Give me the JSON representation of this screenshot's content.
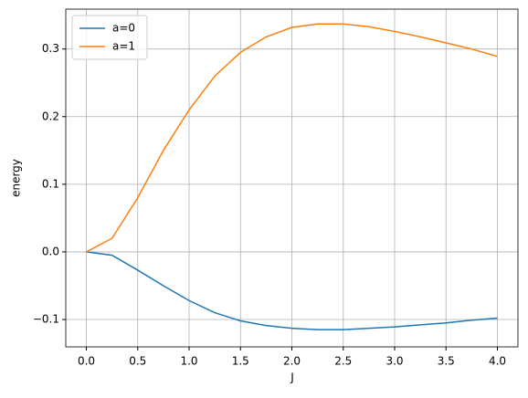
{
  "chart_data": {
    "type": "line",
    "x_label": "J",
    "y_label": "energy",
    "x": [
      0.0,
      0.25,
      0.5,
      0.75,
      1.0,
      1.25,
      1.5,
      1.75,
      2.0,
      2.25,
      2.5,
      2.75,
      3.0,
      3.25,
      3.5,
      3.75,
      4.0
    ],
    "series": [
      {
        "name": "a=0",
        "color": "#1f77b4",
        "values": [
          0.0,
          -0.005,
          -0.027,
          -0.05,
          -0.072,
          -0.09,
          -0.102,
          -0.109,
          -0.113,
          -0.115,
          -0.115,
          -0.113,
          -0.111,
          -0.108,
          -0.105,
          -0.101,
          -0.098
        ]
      },
      {
        "name": "a=1",
        "color": "#ff7f0e",
        "values": [
          0.0,
          0.02,
          0.08,
          0.15,
          0.21,
          0.26,
          0.295,
          0.318,
          0.332,
          0.337,
          0.337,
          0.333,
          0.326,
          0.318,
          0.309,
          0.3,
          0.289
        ]
      }
    ],
    "xlim": [
      -0.2,
      4.2
    ],
    "ylim": [
      -0.1405,
      0.359
    ],
    "xticks": [
      {
        "value": 0.0,
        "label": "0.0"
      },
      0.5,
      {
        "value": 1.0,
        "label": "1.0"
      },
      1.5,
      {
        "value": 2.0,
        "label": "2.0"
      },
      2.5,
      {
        "value": 3.0,
        "label": "3.0"
      },
      3.5,
      {
        "value": 4.0,
        "label": "4.0"
      }
    ],
    "yticks": [
      {
        "value": -0.1,
        "label": "−0.1"
      },
      {
        "value": 0.0,
        "label": "0.0"
      },
      0.1,
      0.2,
      0.3
    ],
    "grid": true,
    "legend": "upper-left"
  }
}
